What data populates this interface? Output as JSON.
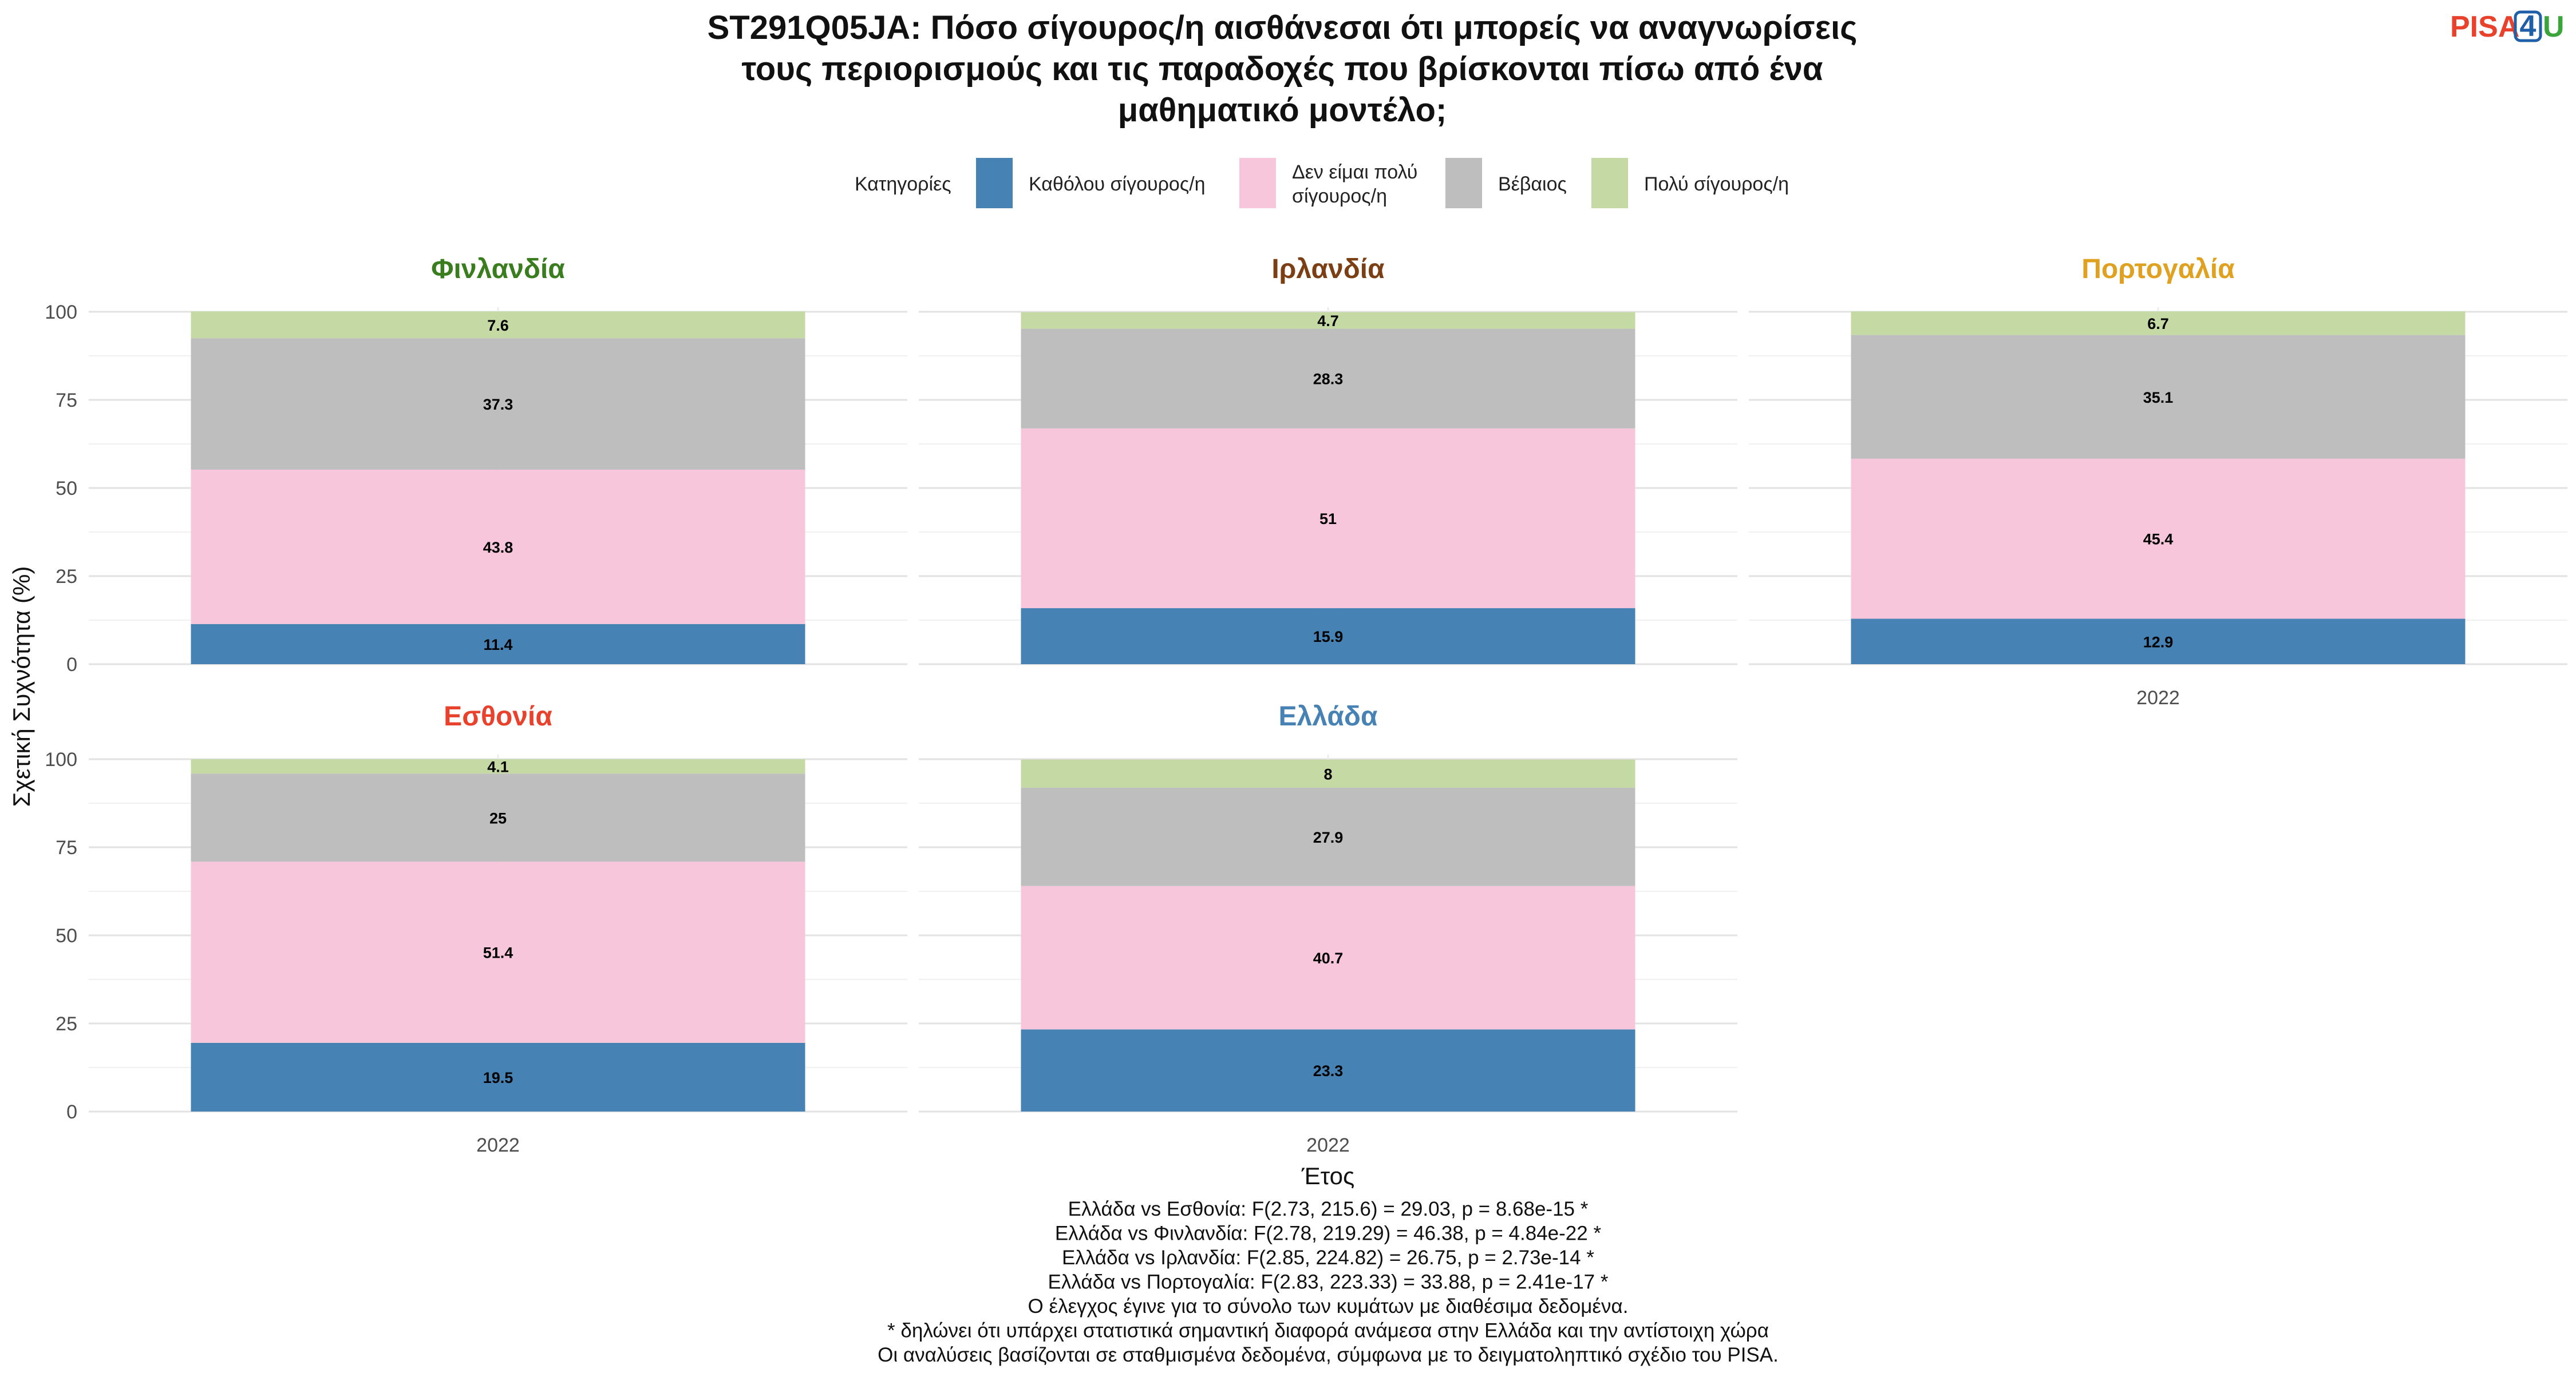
{
  "title_lines": [
    "ST291Q05JA: Πόσο σίγουρος/η αισθάνεσαι ότι μπορείς να αναγνωρίσεις",
    "τους περιορισμούς και τις παραδοχές που βρίσκονται πίσω από ένα",
    "μαθηματικό μοντέλο;"
  ],
  "logo": {
    "part1": "PISA",
    "part2": "4",
    "part3": "U",
    "color1": "#e8412c",
    "color2": "#1f5fa8",
    "color3": "#3aa53a"
  },
  "legend": {
    "title": "Κατηγορίες",
    "items": [
      {
        "label_lines": [
          "Καθόλου σίγουρος/η"
        ],
        "color": "#4682b4"
      },
      {
        "label_lines": [
          "Δεν είμαι πολύ",
          "σίγουρος/η"
        ],
        "color": "#f7c6da"
      },
      {
        "label_lines": [
          "Βέβαιος"
        ],
        "color": "#bebebe"
      },
      {
        "label_lines": [
          "Πολύ σίγουρος/η"
        ],
        "color": "#c4d9a4"
      }
    ]
  },
  "chart_data": {
    "type": "bar",
    "stacked": true,
    "xlabel": "Έτος",
    "ylabel": "Σχετική Συχνότητα (%)",
    "ylim": [
      0,
      100
    ],
    "yticks": [
      0,
      25,
      50,
      75,
      100
    ],
    "categories": [
      "2022"
    ],
    "series_names": [
      "Καθόλου σίγουρος/η",
      "Δεν είμαι πολύ σίγουρος/η",
      "Βέβαιος",
      "Πολύ σίγουρος/η"
    ],
    "series_colors": [
      "#4682b4",
      "#f7c6da",
      "#bebebe",
      "#c4d9a4"
    ],
    "panels": [
      {
        "name": "Φινλανδία",
        "title_color": "#3a7d1e",
        "values": [
          11.4,
          43.8,
          37.3,
          7.6
        ]
      },
      {
        "name": "Ιρλανδία",
        "title_color": "#7b3f13",
        "values": [
          15.9,
          51,
          28.3,
          4.7
        ]
      },
      {
        "name": "Πορτογαλία",
        "title_color": "#e0a020",
        "values": [
          12.9,
          45.4,
          35.1,
          6.7
        ]
      },
      {
        "name": "Εσθονία",
        "title_color": "#e8412c",
        "values": [
          19.5,
          51.4,
          25,
          4.1
        ]
      },
      {
        "name": "Ελλάδα",
        "title_color": "#4682b4",
        "values": [
          23.3,
          40.7,
          27.9,
          8
        ]
      }
    ]
  },
  "caption_lines": [
    "Ελλάδα vs Εσθονία: F(2.73, 215.6) = 29.03, p = 8.68e-15 *",
    "Ελλάδα vs Φινλανδία: F(2.78, 219.29) = 46.38, p = 4.84e-22 *",
    "Ελλάδα vs Ιρλανδία: F(2.85, 224.82) = 26.75, p = 2.73e-14 *",
    "Ελλάδα vs Πορτογαλία: F(2.83, 223.33) = 33.88, p = 2.41e-17 *",
    "Ο έλεγχος έγινε για το σύνολο των κυμάτων με διαθέσιμα δεδομένα.",
    "* δηλώνει ότι υπάρχει στατιστικά σημαντική διαφορά ανάμεσα στην Ελλάδα και την αντίστοιχη χώρα",
    "Οι αναλύσεις βασίζονται σε σταθμισμένα δεδομένα, σύμφωνα με το δειγματοληπτικό σχέδιο του PISA."
  ]
}
